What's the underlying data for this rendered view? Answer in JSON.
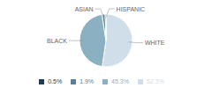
{
  "chart_data": {
    "type": "pie",
    "categories": [
      "WHITE",
      "BLACK",
      "ASIAN",
      "HISPANIC"
    ],
    "values": [
      52.3,
      45.3,
      1.9,
      0.5
    ],
    "value_labels": [
      "52.3%",
      "45.3%",
      "1.9%",
      "0.5%"
    ],
    "colors": [
      "#cfdee8",
      "#8ab0c2",
      "#5a7f96",
      "#1e3d52"
    ],
    "legend": "bottom"
  }
}
